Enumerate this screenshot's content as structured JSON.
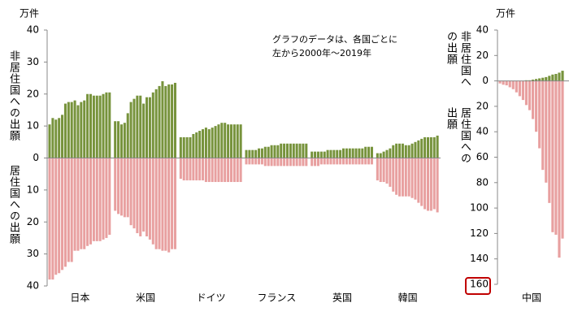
{
  "chart_data": [
    {
      "type": "diverging-bar",
      "unit": "万件",
      "note": [
        "グラフのデータは、各国ごとに",
        "左から2000年～2019年"
      ],
      "categories": [
        "日本",
        "米国",
        "ドイツ",
        "フランス",
        "英国",
        "韓国"
      ],
      "ylim": [
        -40,
        40
      ],
      "yticks": [
        {
          "value": -40,
          "label": "40"
        },
        {
          "value": -30,
          "label": "30"
        },
        {
          "value": -20,
          "label": "20"
        },
        {
          "value": -10,
          "label": "10"
        },
        0,
        10,
        20,
        30,
        40
      ],
      "series": [
        {
          "name": "非居住国への出願",
          "color": "#77933c",
          "values": [
            [
              10.5,
              12.5,
              12,
              12.5,
              13.5,
              17,
              17.5,
              17.5,
              18,
              16.5,
              17.5,
              18,
              20,
              20,
              19.5,
              19.5,
              19.5,
              20,
              20.5,
              20.5
            ],
            [
              11.5,
              11.5,
              10.5,
              11,
              14,
              17.5,
              18.5,
              19.5,
              19.5,
              17,
              19,
              19,
              20.5,
              21.5,
              22.5,
              24,
              22.5,
              23,
              23,
              23.5
            ],
            [
              6.5,
              6.5,
              6.5,
              6.5,
              7.5,
              8,
              8.5,
              9,
              9.5,
              9,
              9.5,
              10,
              10.5,
              11,
              11,
              10.5,
              10.5,
              10.5,
              10.5,
              10.5
            ],
            [
              2.5,
              2.5,
              2.5,
              2.5,
              3,
              3,
              3.5,
              3.5,
              4,
              4,
              4,
              4.5,
              4.5,
              4.5,
              4.5,
              4.5,
              4.5,
              4.5,
              4.5,
              4.5
            ],
            [
              2,
              2,
              2,
              2,
              2,
              2.5,
              2.5,
              2.5,
              2.5,
              2.5,
              3,
              3,
              3,
              3,
              3,
              3,
              3,
              3.5,
              3.5,
              3.5
            ],
            [
              1.5,
              1.5,
              2,
              2.5,
              3,
              4,
              4.5,
              4.5,
              4.5,
              4,
              4,
              4.5,
              5,
              5.5,
              6,
              6.5,
              6.5,
              6.5,
              6.5,
              7
            ]
          ]
        },
        {
          "name": "居住国への出願",
          "color": "#e8a0a0",
          "values": [
            [
              -38,
              -38,
              -36.5,
              -36,
              -35,
              -34,
              -32.5,
              -32.5,
              -29,
              -29,
              -28.5,
              -28.5,
              -27.5,
              -27,
              -26,
              -26,
              -26,
              -25.5,
              -25,
              -24
            ],
            [
              -16.5,
              -17.5,
              -18,
              -18.5,
              -18.5,
              -21,
              -22,
              -23.5,
              -24.5,
              -23,
              -24.5,
              -25.5,
              -27,
              -28.5,
              -28.5,
              -29,
              -29,
              -29.5,
              -28.5,
              -28.5
            ],
            [
              -6.5,
              -7,
              -7,
              -7,
              -7,
              -7,
              -7,
              -7,
              -7.5,
              -7.5,
              -7.5,
              -7.5,
              -7.5,
              -7.5,
              -7.5,
              -7.5,
              -7.5,
              -7.5,
              -7.5,
              -7.5
            ],
            [
              -2,
              -2,
              -2,
              -2,
              -2,
              -2,
              -2.5,
              -2.5,
              -2.5,
              -2.5,
              -2.5,
              -2.5,
              -2.5,
              -2.5,
              -2.5,
              -2.5,
              -2.5,
              -2.5,
              -2.5,
              -2.5
            ],
            [
              -2.5,
              -2.5,
              -2.5,
              -2,
              -2,
              -2,
              -2,
              -2,
              -2,
              -2,
              -2,
              -2,
              -2,
              -2,
              -2,
              -2,
              -2,
              -2,
              -2,
              -2
            ],
            [
              -7,
              -7.5,
              -7.5,
              -8,
              -9,
              -10.5,
              -11.5,
              -12,
              -12,
              -12,
              -12,
              -12.5,
              -13,
              -14,
              -15,
              -16,
              -16.5,
              -16.5,
              -16,
              -17
            ]
          ]
        }
      ]
    },
    {
      "type": "diverging-bar",
      "unit": "万件",
      "categories": [
        "中国"
      ],
      "ylim": [
        -160,
        40
      ],
      "yticks": [
        {
          "value": -160,
          "label": "160"
        },
        {
          "value": -140,
          "label": "140"
        },
        {
          "value": -120,
          "label": "120"
        },
        {
          "value": -100,
          "label": "100"
        },
        {
          "value": -80,
          "label": "80"
        },
        {
          "value": -60,
          "label": "60"
        },
        {
          "value": -40,
          "label": "40"
        },
        {
          "value": -20,
          "label": "20"
        },
        0,
        20,
        40
      ],
      "series": [
        {
          "name": "非居住国への出願",
          "color": "#77933c",
          "values": [
            [
              0,
              0,
              0,
              0,
              0,
              0,
              0,
              0,
              0.5,
              0.5,
              1,
              1.5,
              2,
              2.5,
              3,
              4,
              5,
              5.5,
              6.5,
              8
            ]
          ]
        },
        {
          "name": "居住国への出願",
          "color": "#e8a0a0",
          "values": [
            [
              -2,
              -3,
              -3.5,
              -5,
              -6.5,
              -9,
              -12,
              -15,
              -19,
              -23,
              -30,
              -40,
              -53,
              -70,
              -80,
              -96,
              -119,
              -121,
              -139,
              -124
            ]
          ]
        }
      ]
    }
  ]
}
